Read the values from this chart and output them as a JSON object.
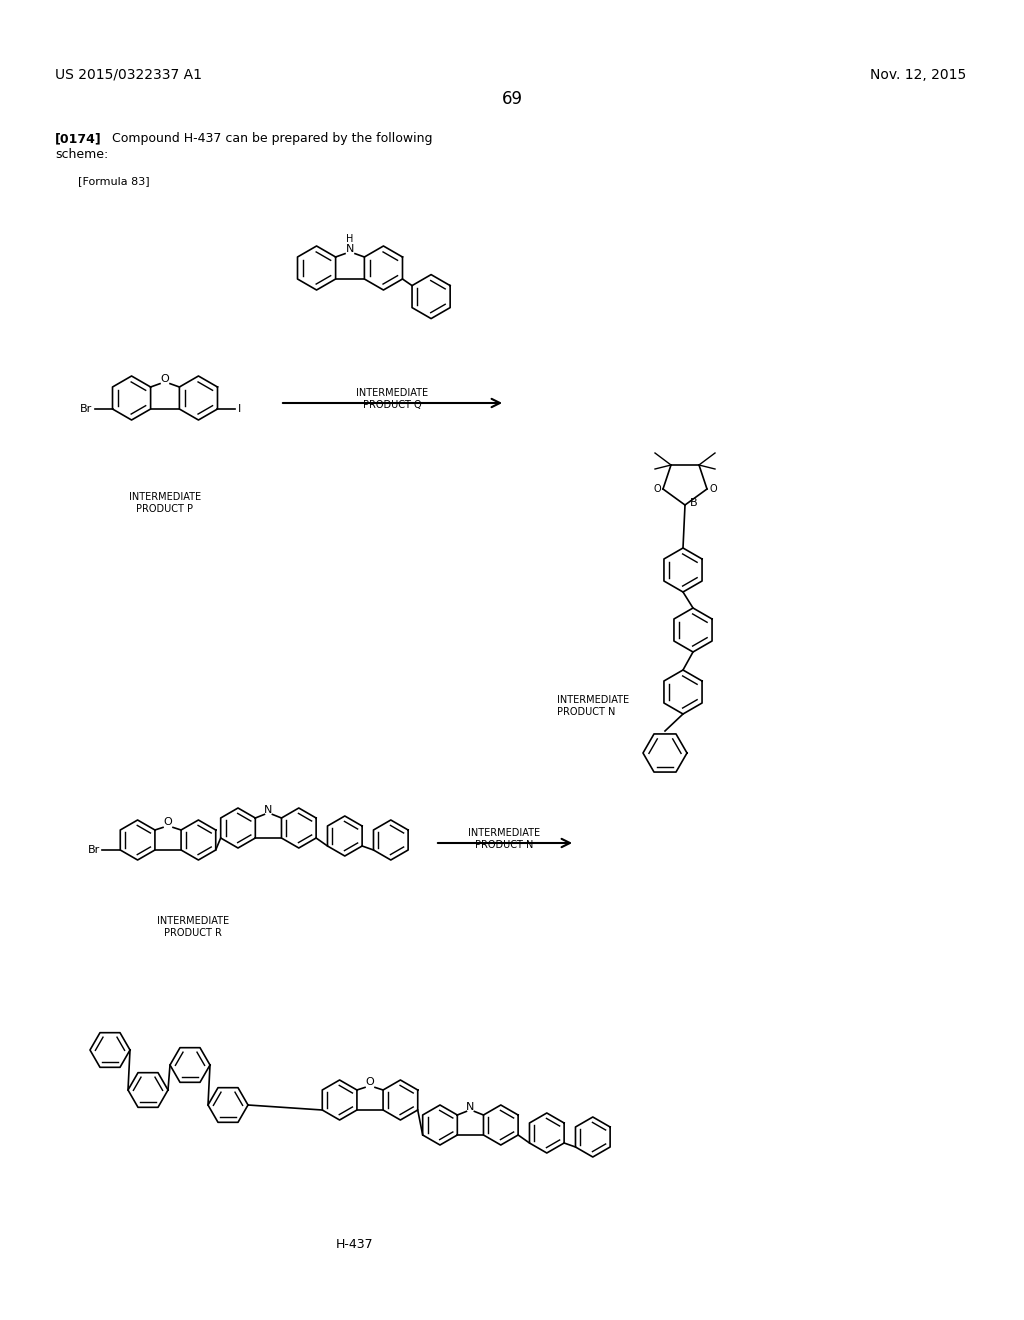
{
  "bg": "#ffffff",
  "header_left": "US 2015/0322337 A1",
  "header_right": "Nov. 12, 2015",
  "page_num": "69",
  "para_tag": "[0174]",
  "para_text": "Compound H-437 can be prepared by the following\nscheme:",
  "formula_label": "[Formula 83]",
  "footer_label": "H-437",
  "int_q": "INTERMEDIATE\nPRODUCT Q",
  "int_p": "INTERMEDIATE\nPRODUCT P",
  "int_n": "INTERMEDIATE\nPRODUCT N",
  "int_r": "INTERMEDIATE\nPRODUCT R"
}
